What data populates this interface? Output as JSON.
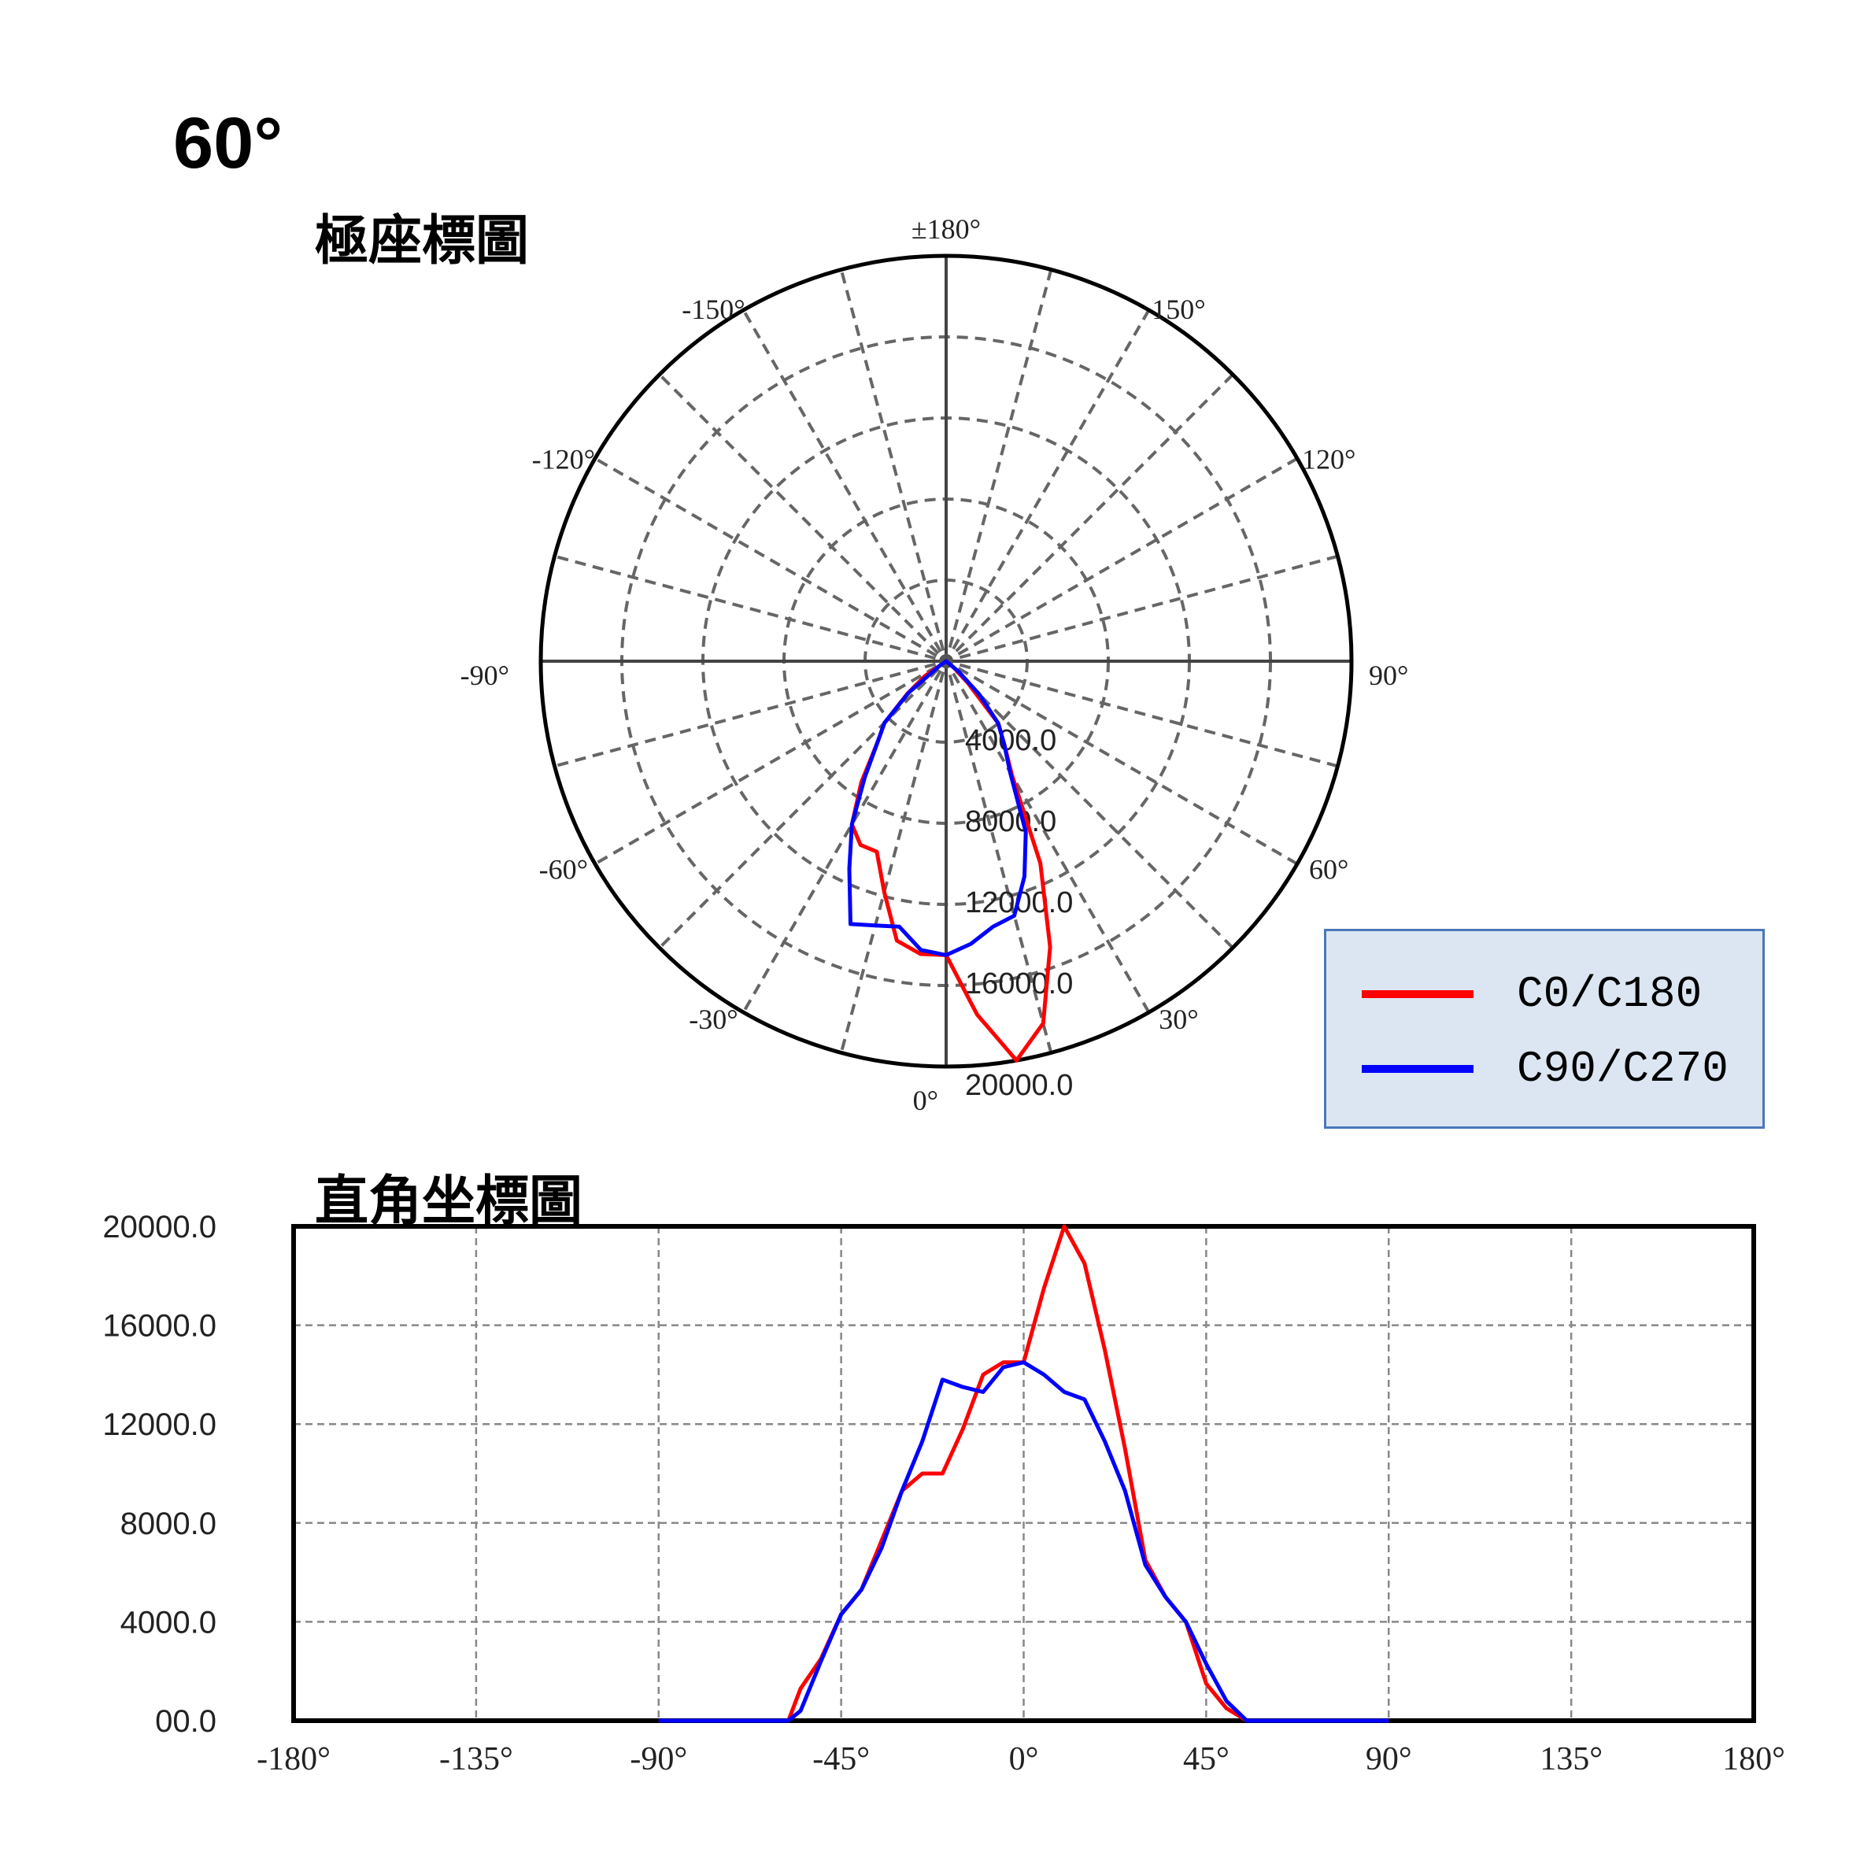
{
  "header": {
    "title": "60°",
    "polar_title": "極座標圖",
    "cartesian_title": "直角坐標圖"
  },
  "legend": [
    {
      "label": "C0/C180",
      "color": "#ff0000"
    },
    {
      "label": "C90/C270",
      "color": "#0000ff"
    }
  ],
  "chart_data": [
    {
      "type": "polar",
      "title": "極座標圖",
      "angle_labels": [
        "±180°",
        "150°",
        "120°",
        "90°",
        "60°",
        "30°",
        "0°",
        "-30°",
        "-60°",
        "-90°",
        "-120°",
        "-150°"
      ],
      "radial_labels": [
        "4000.0",
        "8000.0",
        "12000.0",
        "16000.0",
        "20000.0"
      ],
      "rlim": [
        0,
        20000
      ],
      "grid": true,
      "series": [
        {
          "name": "C0/C180",
          "color": "#ff0000",
          "angles": [
            -58,
            -55,
            -50,
            -45,
            -40,
            -35,
            -30,
            -25,
            -20,
            -15,
            -10,
            -5,
            0,
            5,
            10,
            15,
            20,
            25,
            30,
            35,
            40,
            45,
            50,
            55,
            58
          ],
          "values": [
            0,
            1300,
            2500,
            4300,
            5300,
            7300,
            9300,
            10000,
            10000,
            11800,
            14000,
            14500,
            14500,
            17500,
            20000,
            18500,
            15000,
            11000,
            6500,
            5000,
            4000,
            1500,
            500,
            0,
            0
          ]
        },
        {
          "name": "C90/C270",
          "color": "#0000ff",
          "angles": [
            -58,
            -55,
            -50,
            -45,
            -40,
            -35,
            -30,
            -25,
            -20,
            -15,
            -10,
            -5,
            0,
            5,
            10,
            15,
            20,
            25,
            30,
            35,
            40,
            45,
            50,
            55,
            58
          ],
          "values": [
            0,
            400,
            2400,
            4300,
            5300,
            7000,
            9300,
            11300,
            13800,
            13500,
            13300,
            14300,
            14500,
            14000,
            13300,
            13000,
            11300,
            9300,
            6300,
            5000,
            4000,
            2300,
            800,
            0,
            0
          ]
        }
      ]
    },
    {
      "type": "line",
      "title": "直角坐標圖",
      "x_tick_labels": [
        "-180°",
        "-135°",
        "-90°",
        "-45°",
        "0°",
        "45°",
        "90°",
        "135°",
        "180°"
      ],
      "y_tick_labels": [
        "00.0",
        "4000.0",
        "8000.0",
        "12000.0",
        "16000.0",
        "20000.0"
      ],
      "xlim": [
        -180,
        180
      ],
      "ylim": [
        0,
        20000
      ],
      "grid": true,
      "series": [
        {
          "name": "C0/C180",
          "color": "#ff0000",
          "x": [
            -90,
            -58,
            -55,
            -50,
            -45,
            -40,
            -35,
            -30,
            -25,
            -20,
            -15,
            -10,
            -5,
            0,
            5,
            10,
            15,
            20,
            25,
            30,
            35,
            40,
            45,
            50,
            55,
            58,
            90
          ],
          "y": [
            0,
            0,
            1300,
            2500,
            4300,
            5300,
            7300,
            9300,
            10000,
            10000,
            11800,
            14000,
            14500,
            14500,
            17500,
            20000,
            18500,
            15000,
            11000,
            6500,
            5000,
            4000,
            1500,
            500,
            0,
            0,
            0
          ]
        },
        {
          "name": "C90/C270",
          "color": "#0000ff",
          "x": [
            -90,
            -58,
            -55,
            -50,
            -45,
            -40,
            -35,
            -30,
            -25,
            -20,
            -15,
            -10,
            -5,
            0,
            5,
            10,
            15,
            20,
            25,
            30,
            35,
            40,
            45,
            50,
            55,
            58,
            90
          ],
          "y": [
            0,
            0,
            400,
            2400,
            4300,
            5300,
            7000,
            9300,
            11300,
            13800,
            13500,
            13300,
            14300,
            14500,
            14000,
            13300,
            13000,
            11300,
            9300,
            6300,
            5000,
            4000,
            2300,
            800,
            0,
            0,
            0
          ]
        }
      ]
    }
  ]
}
